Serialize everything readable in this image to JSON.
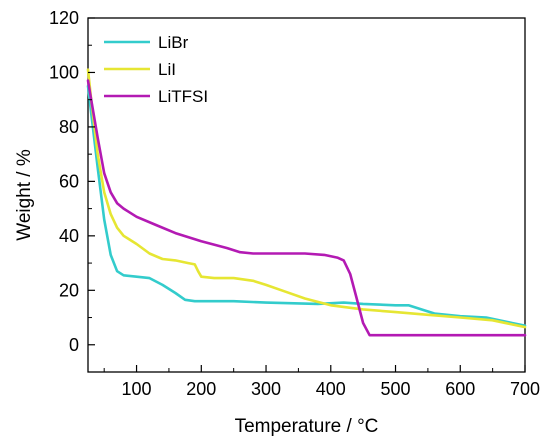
{
  "chart_data": {
    "type": "line",
    "title": "",
    "xlabel": "Temperature / °C",
    "ylabel": "Weight / %",
    "xlim": [
      25,
      700
    ],
    "ylim": [
      -10,
      120
    ],
    "xticks": [
      100,
      200,
      300,
      400,
      500,
      600,
      700
    ],
    "yticks": [
      0,
      20,
      40,
      60,
      80,
      100,
      120
    ],
    "grid": false,
    "legend_position": "top-left",
    "series": [
      {
        "name": "LiBr",
        "color": "#33cccc",
        "points": [
          [
            25,
            95
          ],
          [
            30,
            85
          ],
          [
            40,
            65
          ],
          [
            50,
            46
          ],
          [
            60,
            33
          ],
          [
            70,
            27
          ],
          [
            80,
            25.5
          ],
          [
            100,
            25
          ],
          [
            120,
            24.5
          ],
          [
            140,
            22
          ],
          [
            160,
            19
          ],
          [
            175,
            16.5
          ],
          [
            190,
            16
          ],
          [
            250,
            16
          ],
          [
            300,
            15.5
          ],
          [
            380,
            15
          ],
          [
            420,
            15.5
          ],
          [
            450,
            15
          ],
          [
            500,
            14.5
          ],
          [
            520,
            14.5
          ],
          [
            540,
            13
          ],
          [
            560,
            11.5
          ],
          [
            600,
            10.5
          ],
          [
            640,
            10
          ],
          [
            680,
            8
          ],
          [
            700,
            7
          ]
        ]
      },
      {
        "name": "LiI",
        "color": "#e6e633",
        "points": [
          [
            25,
            101
          ],
          [
            30,
            90
          ],
          [
            40,
            70
          ],
          [
            50,
            56
          ],
          [
            60,
            48
          ],
          [
            70,
            43
          ],
          [
            80,
            40
          ],
          [
            100,
            37
          ],
          [
            120,
            33.5
          ],
          [
            140,
            31.5
          ],
          [
            160,
            31
          ],
          [
            180,
            30
          ],
          [
            190,
            29.5
          ],
          [
            195,
            27
          ],
          [
            200,
            25
          ],
          [
            220,
            24.5
          ],
          [
            250,
            24.5
          ],
          [
            280,
            23.5
          ],
          [
            300,
            22
          ],
          [
            330,
            19.5
          ],
          [
            360,
            17
          ],
          [
            400,
            14.5
          ],
          [
            450,
            13
          ],
          [
            500,
            12
          ],
          [
            550,
            11
          ],
          [
            600,
            10
          ],
          [
            650,
            9
          ],
          [
            700,
            6.5
          ]
        ]
      },
      {
        "name": "LiTFSI",
        "color": "#b31ab3",
        "points": [
          [
            25,
            97
          ],
          [
            30,
            90
          ],
          [
            40,
            76
          ],
          [
            50,
            63
          ],
          [
            60,
            56
          ],
          [
            70,
            52
          ],
          [
            80,
            50
          ],
          [
            100,
            47
          ],
          [
            130,
            44
          ],
          [
            160,
            41
          ],
          [
            200,
            38
          ],
          [
            240,
            35.5
          ],
          [
            260,
            34
          ],
          [
            280,
            33.5
          ],
          [
            320,
            33.5
          ],
          [
            360,
            33.5
          ],
          [
            390,
            33
          ],
          [
            410,
            32
          ],
          [
            420,
            31
          ],
          [
            430,
            26
          ],
          [
            440,
            17
          ],
          [
            450,
            8
          ],
          [
            460,
            3.5
          ],
          [
            480,
            3.5
          ],
          [
            550,
            3.5
          ],
          [
            650,
            3.5
          ],
          [
            700,
            3.5
          ]
        ]
      }
    ]
  }
}
